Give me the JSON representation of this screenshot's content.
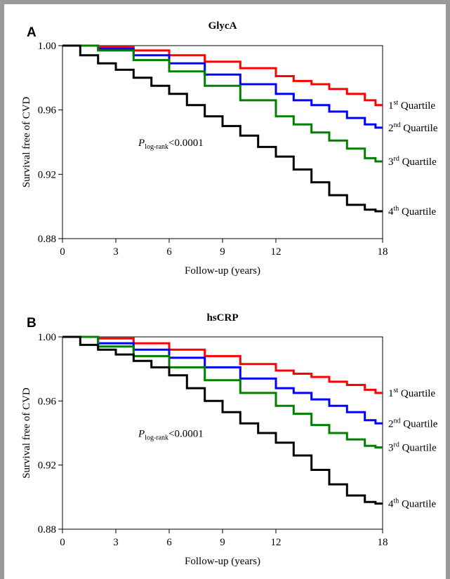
{
  "chart_data": [
    {
      "panel_label": "A",
      "type": "line",
      "title": "GlycA",
      "xlabel": "Follow-up (years)",
      "ylabel": "Survival free of CVD",
      "xlim": [
        0,
        18
      ],
      "ylim": [
        0.88,
        1.0
      ],
      "xticks": [
        "0",
        "3",
        "6",
        "9",
        "12",
        "18"
      ],
      "xtick_values": [
        0,
        3,
        6,
        9,
        12,
        18
      ],
      "yticks": [
        "0.88",
        "0.92",
        "0.96",
        "1.00"
      ],
      "ytick_values": [
        0.88,
        0.92,
        0.96,
        1.0
      ],
      "grid": false,
      "annotation": {
        "p_symbol": "P",
        "p_subscript": "log-rank",
        "p_value": "<0.0001"
      },
      "series": [
        {
          "label_base": "1",
          "label_sup": "st",
          "label_text": " Quartile",
          "color": "#ff0000",
          "x": [
            0,
            2,
            4,
            6,
            8,
            10,
            12,
            13,
            14,
            15,
            16,
            17,
            17.6,
            18
          ],
          "y": [
            1.0,
            0.999,
            0.997,
            0.994,
            0.99,
            0.986,
            0.981,
            0.978,
            0.976,
            0.973,
            0.97,
            0.966,
            0.963,
            0.963
          ]
        },
        {
          "label_base": "2",
          "label_sup": "nd",
          "label_text": " Quartile",
          "color": "#0000ff",
          "x": [
            0,
            2,
            4,
            6,
            8,
            10,
            12,
            13,
            14,
            15,
            16,
            17,
            17.6,
            18
          ],
          "y": [
            1.0,
            0.998,
            0.994,
            0.989,
            0.982,
            0.976,
            0.97,
            0.966,
            0.963,
            0.959,
            0.955,
            0.951,
            0.949,
            0.949
          ]
        },
        {
          "label_base": "3",
          "label_sup": "rd",
          "label_text": " Quartile",
          "color": "#008000",
          "x": [
            0,
            2,
            4,
            6,
            8,
            10,
            12,
            13,
            14,
            15,
            16,
            17,
            17.6,
            18
          ],
          "y": [
            1.0,
            0.997,
            0.991,
            0.984,
            0.975,
            0.966,
            0.956,
            0.951,
            0.946,
            0.941,
            0.936,
            0.93,
            0.928,
            0.928
          ]
        },
        {
          "label_base": "4",
          "label_sup": "th",
          "label_text": " Quartile",
          "color": "#000000",
          "x": [
            0,
            1,
            2,
            3,
            4,
            5,
            6,
            7,
            8,
            9,
            10,
            11,
            12,
            13,
            14,
            15,
            16,
            17,
            17.6,
            18
          ],
          "y": [
            1.0,
            0.994,
            0.989,
            0.985,
            0.98,
            0.975,
            0.97,
            0.963,
            0.956,
            0.95,
            0.944,
            0.937,
            0.931,
            0.923,
            0.915,
            0.907,
            0.901,
            0.898,
            0.897,
            0.897
          ]
        }
      ]
    },
    {
      "panel_label": "B",
      "type": "line",
      "title": "hsCRP",
      "xlabel": "Follow-up (years)",
      "ylabel": "Survival free of CVD",
      "xlim": [
        0,
        18
      ],
      "ylim": [
        0.88,
        1.0
      ],
      "xticks": [
        "0",
        "3",
        "6",
        "9",
        "12",
        "18"
      ],
      "xtick_values": [
        0,
        3,
        6,
        9,
        12,
        18
      ],
      "yticks": [
        "0.88",
        "0.92",
        "0.96",
        "1.00"
      ],
      "ytick_values": [
        0.88,
        0.92,
        0.96,
        1.0
      ],
      "grid": false,
      "annotation": {
        "p_symbol": "P",
        "p_subscript": "log-rank",
        "p_value": "<0.0001"
      },
      "series": [
        {
          "label_base": "1",
          "label_sup": "st",
          "label_text": " Quartile",
          "color": "#ff0000",
          "x": [
            0,
            2,
            4,
            6,
            8,
            10,
            12,
            13,
            14,
            15,
            16,
            17,
            17.6,
            18
          ],
          "y": [
            1.0,
            0.999,
            0.996,
            0.992,
            0.988,
            0.983,
            0.979,
            0.977,
            0.975,
            0.972,
            0.97,
            0.967,
            0.965,
            0.965
          ]
        },
        {
          "label_base": "2",
          "label_sup": "nd",
          "label_text": " Quartile",
          "color": "#0000ff",
          "x": [
            0,
            2,
            4,
            6,
            8,
            10,
            12,
            13,
            14,
            15,
            16,
            17,
            17.6,
            18
          ],
          "y": [
            1.0,
            0.996,
            0.992,
            0.987,
            0.981,
            0.974,
            0.968,
            0.965,
            0.961,
            0.957,
            0.953,
            0.948,
            0.946,
            0.946
          ]
        },
        {
          "label_base": "3",
          "label_sup": "rd",
          "label_text": " Quartile",
          "color": "#008000",
          "x": [
            0,
            2,
            4,
            6,
            8,
            10,
            12,
            13,
            14,
            15,
            16,
            17,
            17.6,
            18
          ],
          "y": [
            1.0,
            0.994,
            0.988,
            0.981,
            0.973,
            0.965,
            0.957,
            0.952,
            0.945,
            0.94,
            0.936,
            0.932,
            0.931,
            0.931
          ]
        },
        {
          "label_base": "4",
          "label_sup": "th",
          "label_text": " Quartile",
          "color": "#000000",
          "x": [
            0,
            1,
            2,
            3,
            4,
            5,
            6,
            7,
            8,
            9,
            10,
            11,
            12,
            13,
            14,
            15,
            16,
            17,
            17.6,
            18
          ],
          "y": [
            1.0,
            0.995,
            0.992,
            0.989,
            0.985,
            0.981,
            0.976,
            0.968,
            0.96,
            0.953,
            0.946,
            0.94,
            0.934,
            0.926,
            0.917,
            0.908,
            0.901,
            0.897,
            0.896,
            0.896
          ]
        }
      ]
    }
  ]
}
